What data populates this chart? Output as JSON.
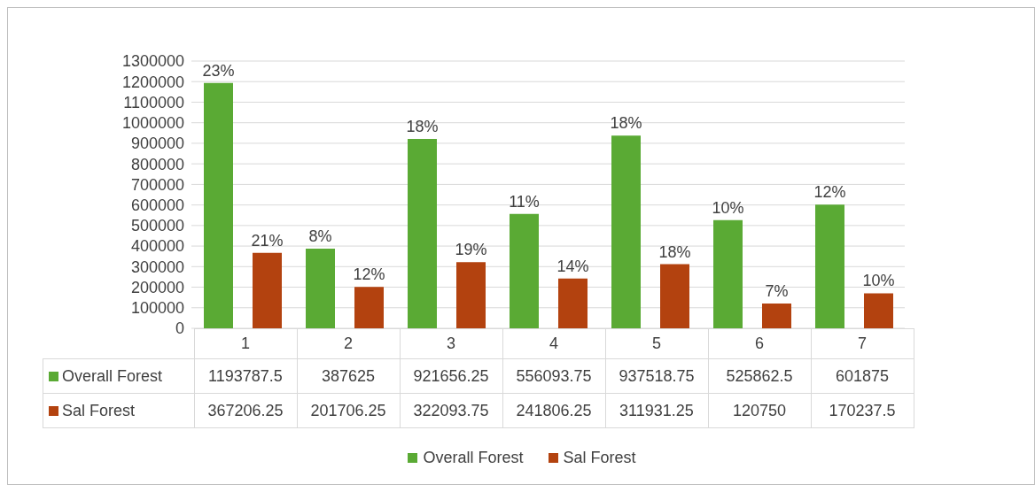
{
  "chart_data": {
    "type": "bar",
    "categories": [
      "1",
      "2",
      "3",
      "4",
      "5",
      "6",
      "7"
    ],
    "series": [
      {
        "name": "Overall Forest",
        "color": "#5aaa34",
        "values": [
          1193787.5,
          387625,
          921656.25,
          556093.75,
          937518.75,
          525862.5,
          601875
        ]
      },
      {
        "name": "Sal Forest",
        "color": "#b3420f",
        "values": [
          367206.25,
          201706.25,
          322093.75,
          241806.25,
          311931.25,
          120750,
          170237.5
        ]
      }
    ],
    "annotations": [
      "23%",
      "8%",
      "18%",
      "11%",
      "18%",
      "10%",
      "12%",
      "21%",
      "12%",
      "19%",
      "14%",
      "18%",
      "7%",
      "10%"
    ],
    "ylim": [
      0,
      1300000
    ],
    "yticks": [
      0,
      100000,
      200000,
      300000,
      400000,
      500000,
      600000,
      700000,
      800000,
      900000,
      1000000,
      1100000,
      1200000,
      1300000
    ],
    "grid": "y",
    "legend": "bottom",
    "data_labels": true
  }
}
